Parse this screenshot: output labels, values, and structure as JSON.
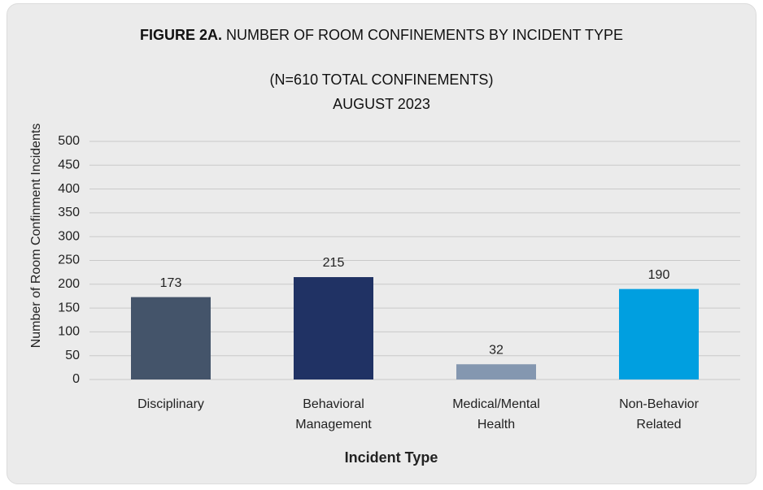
{
  "chart_data": {
    "type": "bar",
    "title_label": "FIGURE 2A.",
    "title": "NUMBER OF ROOM CONFINEMENTS BY INCIDENT TYPE",
    "subtitle": [
      "(N=610 TOTAL CONFINEMENTS)",
      "AUGUST 2023"
    ],
    "categories": [
      [
        "Disciplinary"
      ],
      [
        "Behavioral",
        "Management"
      ],
      [
        "Medical/Mental",
        "Health"
      ],
      [
        "Non-Behavior",
        "Related"
      ]
    ],
    "values": [
      173,
      215,
      32,
      190
    ],
    "colors": [
      "#44546a",
      "#203264",
      "#8497b0",
      "#009fe0"
    ],
    "x_label": "Incident Type",
    "y_label": "Number of Room Confinment Incidents",
    "ylim": [
      0,
      500
    ],
    "yticks": [
      0,
      50,
      100,
      150,
      200,
      250,
      300,
      350,
      400,
      450,
      500
    ],
    "grid": true
  }
}
